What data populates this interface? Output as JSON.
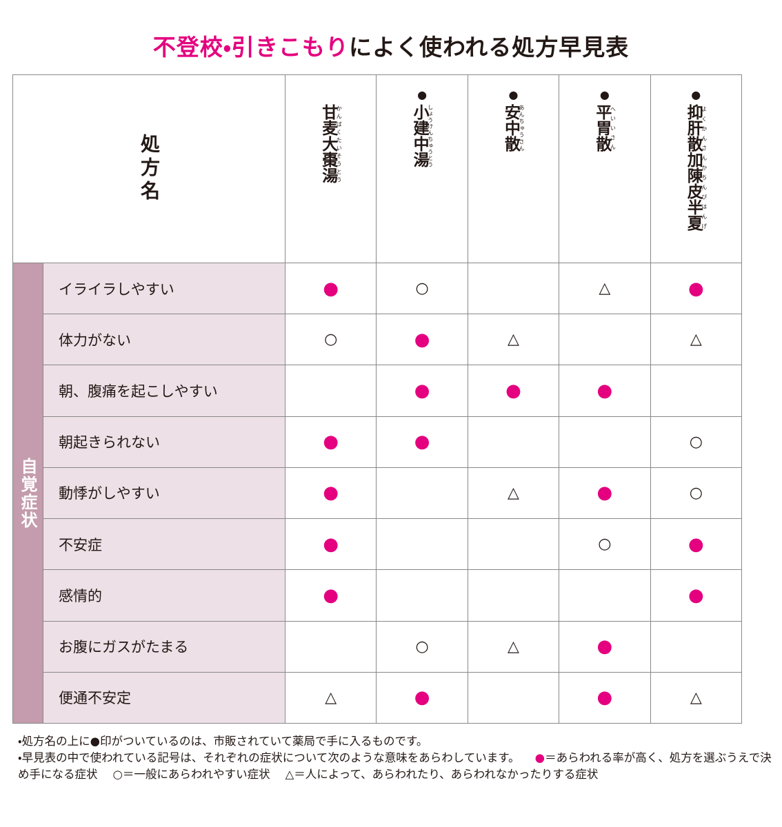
{
  "title": {
    "highlight": "不登校・引きこもり",
    "rest": "によく使われる処方早見表"
  },
  "table": {
    "corner": "処方名",
    "side_label": "自覚症状",
    "columns": [
      {
        "mark": null,
        "name": "甘麦大棗湯",
        "reading": "かんばくたいそうとう"
      },
      {
        "mark": "●",
        "name": "小建中湯",
        "reading": "しょうけんちゅうとう"
      },
      {
        "mark": "●",
        "name": "安中散",
        "reading": "あんちゅうさん"
      },
      {
        "mark": "●",
        "name": "平胃散",
        "reading": "へいいさん"
      },
      {
        "mark": "●",
        "name": "抑肝散加陳皮半夏",
        "reading": "よくかんさんかちんぴはんげ"
      }
    ],
    "rows": [
      {
        "symptom": "イライラしやすい",
        "cells": [
          "●",
          "○",
          null,
          "△",
          "●"
        ]
      },
      {
        "symptom": "体力がない",
        "cells": [
          "○",
          "●",
          "△",
          null,
          "△"
        ]
      },
      {
        "symptom": "朝、腹痛を起こしやすい",
        "cells": [
          null,
          "●",
          "●",
          "●",
          null
        ]
      },
      {
        "symptom": "朝起きられない",
        "cells": [
          "●",
          "●",
          null,
          null,
          "○"
        ]
      },
      {
        "symptom": "動悸がしやすい",
        "cells": [
          "●",
          null,
          "△",
          "●",
          "○"
        ]
      },
      {
        "symptom": "不安症",
        "cells": [
          "●",
          null,
          null,
          "○",
          "●"
        ]
      },
      {
        "symptom": "感情的",
        "cells": [
          "●",
          null,
          null,
          null,
          "●"
        ]
      },
      {
        "symptom": "お腹にガスがたまる",
        "cells": [
          null,
          "○",
          "△",
          "●",
          null
        ]
      },
      {
        "symptom": "便通不安定",
        "cells": [
          "△",
          "●",
          null,
          "●",
          "△"
        ]
      }
    ]
  },
  "notes": [
    {
      "text": "・処方名の上に●印がついているのは、市販されていて薬局で手に入るものです。"
    },
    {
      "text": "・早見表の中で使われている記号は、それぞれの症状について次のような意味をあらわしています。",
      "legend": [
        {
          "symbol": "●",
          "meaning": "＝あらわれる率が高く、処方を選ぶうえで決め手になる症状"
        },
        {
          "symbol": "○",
          "meaning": "＝一般にあらわれやすい症状"
        },
        {
          "symbol": "△",
          "meaning": "＝人によって、あらわれたり、あらわれなかったりする症状"
        }
      ]
    }
  ]
}
